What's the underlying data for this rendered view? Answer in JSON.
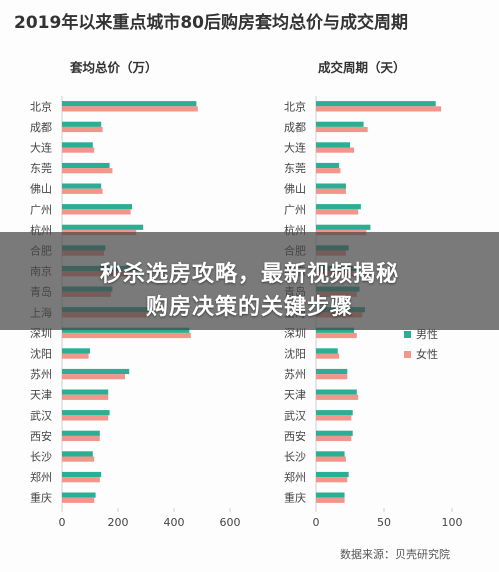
{
  "title": "2019年以来重点城市80后购房套均总价与成交周期",
  "source": "数据来源：贝壳研究院",
  "colors": {
    "male": "#2cae94",
    "female": "#f2958a",
    "axis": "#cfcfcf",
    "label": "#444444"
  },
  "banner": {
    "line1": "秒杀选房攻略，最新视频揭秘",
    "line2": "购房决策的关键步骤"
  },
  "chart_data": [
    {
      "type": "bar",
      "orientation": "horizontal",
      "title": "套均总价（万）",
      "categories": [
        "北京",
        "成都",
        "大连",
        "东莞",
        "佛山",
        "广州",
        "杭州",
        "合肥",
        "南京",
        "青岛",
        "上海",
        "深圳",
        "沈阳",
        "苏州",
        "天津",
        "武汉",
        "西安",
        "长沙",
        "郑州",
        "重庆"
      ],
      "series": [
        {
          "name": "男性",
          "values": [
            480,
            140,
            110,
            170,
            140,
            250,
            290,
            155,
            270,
            180,
            310,
            455,
            100,
            240,
            165,
            170,
            135,
            110,
            140,
            120
          ]
        },
        {
          "name": "女性",
          "values": [
            485,
            145,
            115,
            180,
            145,
            245,
            265,
            150,
            260,
            175,
            300,
            460,
            95,
            225,
            165,
            165,
            135,
            115,
            135,
            115
          ]
        }
      ],
      "xlim": [
        0,
        600
      ],
      "xticks": [
        "0",
        "200",
        "400",
        "600"
      ],
      "grid": false
    },
    {
      "type": "bar",
      "orientation": "horizontal",
      "title": "成交周期（天）",
      "categories": [
        "北京",
        "成都",
        "大连",
        "东莞",
        "佛山",
        "广州",
        "杭州",
        "合肥",
        "南京",
        "青岛",
        "上海",
        "深圳",
        "沈阳",
        "苏州",
        "天津",
        "武汉",
        "西安",
        "长沙",
        "郑州",
        "重庆"
      ],
      "series": [
        {
          "name": "男性",
          "values": [
            88,
            35,
            25,
            17,
            22,
            33,
            40,
            24,
            30,
            32,
            36,
            28,
            16,
            23,
            30,
            27,
            27,
            21,
            24,
            21
          ]
        },
        {
          "name": "女性",
          "values": [
            92,
            38,
            28,
            18,
            22,
            31,
            37,
            22,
            28,
            30,
            34,
            30,
            17,
            23,
            31,
            26,
            26,
            22,
            23,
            21
          ]
        }
      ],
      "xlim": [
        0,
        100
      ],
      "xticks": [
        "0",
        "50",
        "100"
      ],
      "legend": {
        "placement": "right",
        "entries": [
          "男性",
          "女性"
        ]
      },
      "grid": false
    }
  ]
}
